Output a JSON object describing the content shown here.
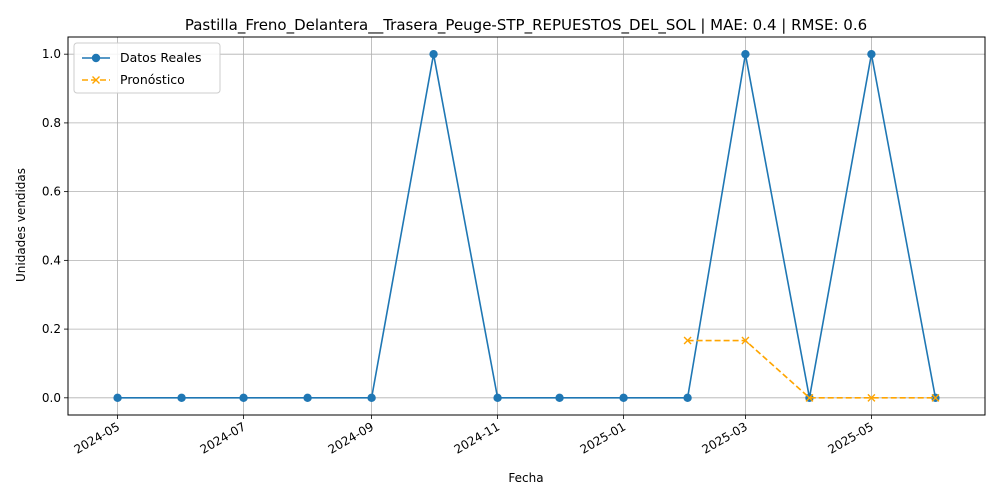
{
  "chart_data": {
    "type": "line",
    "title": "Pastilla_Freno_Delantera__Trasera_Peuge-STP_REPUESTOS_DEL_SOL | MAE: 0.4 | RMSE: 0.6",
    "xlabel": "Fecha",
    "ylabel": "Unidades vendidas",
    "xlim": [
      "2024-04-07",
      "2025-06-25"
    ],
    "ylim": [
      -0.05,
      1.05
    ],
    "x_ticks": [
      "2024-05",
      "2024-07",
      "2024-09",
      "2024-11",
      "2025-01",
      "2025-03",
      "2025-05"
    ],
    "y_ticks": [
      0.0,
      0.2,
      0.4,
      0.6,
      0.8,
      1.0
    ],
    "y_tick_labels": [
      "0.0",
      "0.2",
      "0.4",
      "0.6",
      "0.8",
      "1.0"
    ],
    "grid": true,
    "legend_position": "top-left",
    "series": [
      {
        "name": "Datos Reales",
        "color": "#1f77b4",
        "style": "solid",
        "marker": "circle",
        "x": [
          "2024-05-01",
          "2024-06-01",
          "2024-07-01",
          "2024-08-01",
          "2024-09-01",
          "2024-10-01",
          "2024-11-01",
          "2024-12-01",
          "2025-01-01",
          "2025-02-01",
          "2025-03-01",
          "2025-04-01",
          "2025-05-01",
          "2025-06-01"
        ],
        "values": [
          0,
          0,
          0,
          0,
          0,
          1,
          0,
          0,
          0,
          0,
          1,
          0,
          1,
          0
        ]
      },
      {
        "name": "Pronóstico",
        "color": "#ffa500",
        "style": "dashed",
        "marker": "x",
        "x": [
          "2025-02-01",
          "2025-03-01",
          "2025-04-01",
          "2025-05-01",
          "2025-06-01"
        ],
        "values": [
          0.1667,
          0.1667,
          0.0,
          0.0,
          0.0
        ]
      }
    ]
  }
}
